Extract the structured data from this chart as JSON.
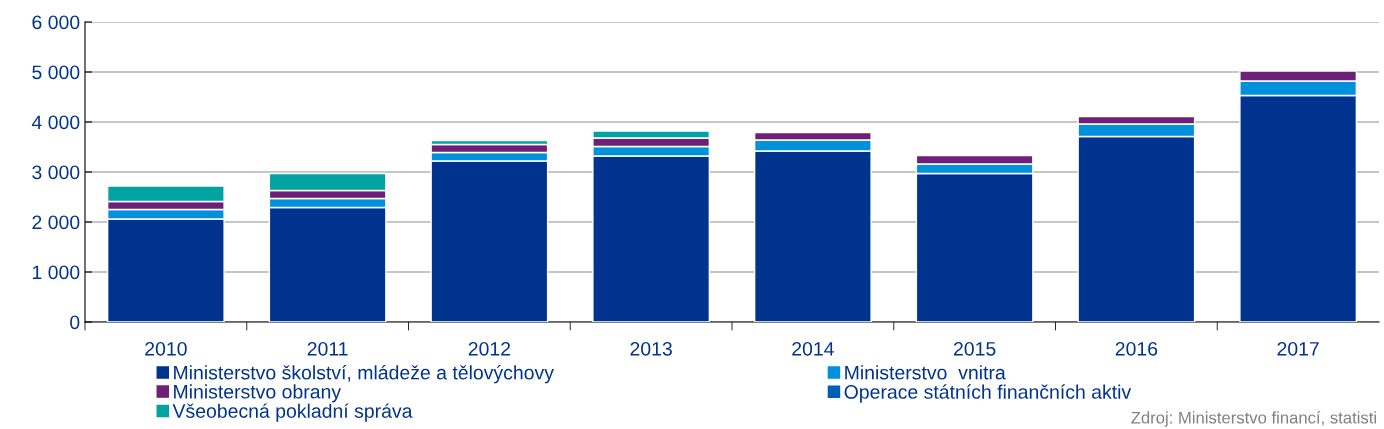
{
  "chart_data": {
    "type": "bar",
    "stacked": true,
    "categories": [
      "2010",
      "2011",
      "2012",
      "2013",
      "2014",
      "2015",
      "2016",
      "2017"
    ],
    "series": [
      {
        "name": "Ministerstvo školství, mládeže a tělovýchovy",
        "color": "#00338d",
        "values": [
          2060,
          2290,
          3220,
          3320,
          3420,
          2970,
          3710,
          4530
        ]
      },
      {
        "name": "Ministerstvo  vnitra",
        "color": "#0091da",
        "values": [
          190,
          180,
          170,
          190,
          220,
          190,
          250,
          290
        ]
      },
      {
        "name": "Ministerstvo obrany",
        "color": "#6d2077",
        "values": [
          160,
          160,
          160,
          170,
          150,
          170,
          150,
          200
        ]
      },
      {
        "name": "Operace státních finančních aktiv",
        "color": "#005eb8",
        "values": [
          null,
          null,
          null,
          null,
          null,
          null,
          null,
          null
        ]
      },
      {
        "name": "Všeobecná pokladní správa",
        "color": "#00a3a1",
        "values": [
          310,
          340,
          80,
          140,
          null,
          null,
          null,
          null
        ]
      }
    ],
    "ylim": [
      0,
      6000
    ],
    "yticks": [
      {
        "value": 0,
        "label": "0"
      },
      {
        "value": 1000,
        "label": "1 000"
      },
      {
        "value": 2000,
        "label": "2 000"
      },
      {
        "value": 3000,
        "label": "3 000"
      },
      {
        "value": 4000,
        "label": "4 000"
      },
      {
        "value": 5000,
        "label": "5 000"
      },
      {
        "value": 6000,
        "label": "6 000"
      }
    ],
    "grid": "y",
    "legend": "bottom",
    "marker": "square",
    "annotations": [
      "Zdroj: Ministerstvo financí, statisti"
    ]
  }
}
